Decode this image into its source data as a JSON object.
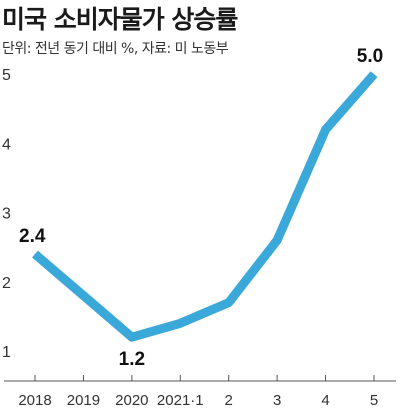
{
  "chart_data": {
    "type": "line",
    "title": "미국 소비자물가 상승률",
    "subtitle": "단위: 전년 동기 대비 %, 자료: 미 노동부",
    "categories": [
      "2018",
      "2019",
      "2020",
      "2021·1",
      "2",
      "3",
      "4",
      "5"
    ],
    "series": [
      {
        "values": [
          2.4,
          1.8,
          1.2,
          1.4,
          1.7,
          2.6,
          4.2,
          5.0
        ],
        "color": "#3aa8d8"
      }
    ],
    "data_labels": [
      {
        "index": 0,
        "text": "2.4"
      },
      {
        "index": 2,
        "text": "1.2"
      },
      {
        "index": 7,
        "text": "5.0"
      }
    ],
    "yticks": [
      1,
      2,
      3,
      4,
      5
    ],
    "ylim": [
      0.6,
      5.5
    ],
    "grid": false,
    "legend": "none"
  }
}
